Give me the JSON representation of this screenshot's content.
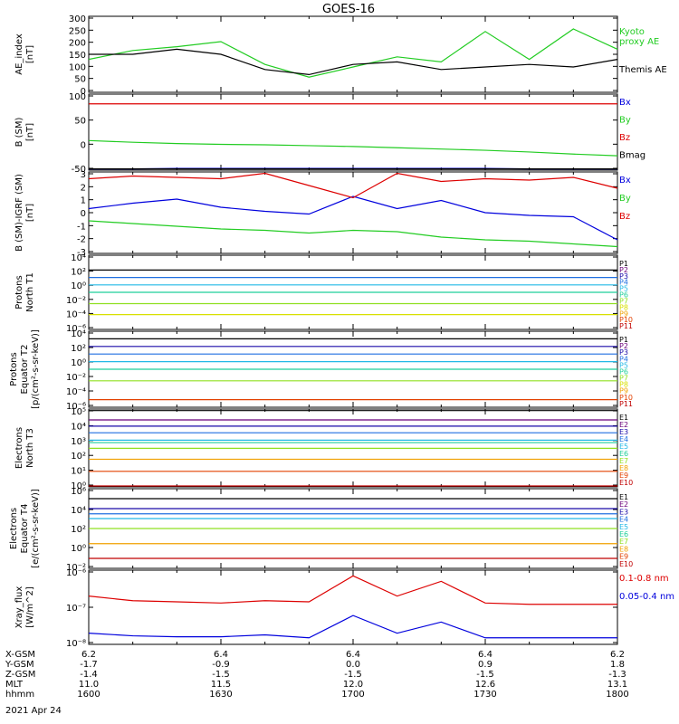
{
  "title": "GOES-16",
  "date": "2021 Apr 24",
  "colors": {
    "black": "#000000",
    "blue": "#0000dd",
    "green": "#22cc22",
    "red": "#dd0000",
    "P1": "#000000",
    "P2": "#6a007a",
    "P3": "#1a0aa8",
    "P4": "#1f6fe0",
    "P5": "#22b8e6",
    "P6": "#1fcf9a",
    "P7": "#8fe020",
    "P8": "#d8e000",
    "P9": "#f0a000",
    "P10": "#e34000",
    "P11": "#c00000"
  },
  "panels": [
    {
      "id": "ae",
      "ylabel": [
        "AE_index",
        "[nT]"
      ],
      "ticks": [
        "300",
        "250",
        "200",
        "150",
        "100",
        "50",
        "0"
      ],
      "legend": [
        {
          "text": "Kyoto",
          "color": "green"
        },
        {
          "text": "proxy AE",
          "color": "green"
        },
        {
          "text": "Themis AE",
          "color": "black"
        }
      ]
    },
    {
      "id": "b_sm",
      "ylabel": [
        "B (SM)",
        "[nT]"
      ],
      "ticks": [
        "100",
        "50",
        "0",
        "-50"
      ],
      "legend": [
        {
          "text": "Bx",
          "color": "blue"
        },
        {
          "text": "By",
          "color": "green"
        },
        {
          "text": "Bz",
          "color": "red"
        },
        {
          "text": "Bmag",
          "color": "black"
        }
      ]
    },
    {
      "id": "b_igrf",
      "ylabel": [
        "B (SM)-IGRF (SM)",
        "[nT]"
      ],
      "ticks": [
        "3",
        "2",
        "1",
        "0",
        "-1",
        "-2",
        "-3"
      ],
      "legend": [
        {
          "text": "Bx",
          "color": "blue"
        },
        {
          "text": "By",
          "color": "green"
        },
        {
          "text": "Bz",
          "color": "red"
        }
      ]
    },
    {
      "id": "protons_t1",
      "ylabel": [
        "Protons",
        "North T1"
      ],
      "ticks": [
        "10⁴",
        "10²",
        "10⁰",
        "10⁻²",
        "10⁻⁴",
        "10⁻⁶"
      ],
      "legend": [
        {
          "text": "P1",
          "color": "P1"
        },
        {
          "text": "P2",
          "color": "P2"
        },
        {
          "text": "P3",
          "color": "P3"
        },
        {
          "text": "P4",
          "color": "P4"
        },
        {
          "text": "P5",
          "color": "P5"
        },
        {
          "text": "P6",
          "color": "P6"
        },
        {
          "text": "P7",
          "color": "P7"
        },
        {
          "text": "P8",
          "color": "P8"
        },
        {
          "text": "P9",
          "color": "P9"
        },
        {
          "text": "P10",
          "color": "P10"
        },
        {
          "text": "P11",
          "color": "P11"
        }
      ]
    },
    {
      "id": "protons_t2",
      "ylabel": [
        "Protons",
        "Equator T2",
        "[p/(cm²-s-sr-keV)]"
      ],
      "ticks": [
        "10⁴",
        "10²",
        "10⁰",
        "10⁻²",
        "10⁻⁴",
        "10⁻⁶"
      ],
      "legend": [
        {
          "text": "P1",
          "color": "P1"
        },
        {
          "text": "P2",
          "color": "P2"
        },
        {
          "text": "P3",
          "color": "P3"
        },
        {
          "text": "P4",
          "color": "P4"
        },
        {
          "text": "P5",
          "color": "P5"
        },
        {
          "text": "P6",
          "color": "P6"
        },
        {
          "text": "P7",
          "color": "P7"
        },
        {
          "text": "P8",
          "color": "P8"
        },
        {
          "text": "P9",
          "color": "P9"
        },
        {
          "text": "P10",
          "color": "P10"
        },
        {
          "text": "P11",
          "color": "P11"
        }
      ]
    },
    {
      "id": "electrons_t3",
      "ylabel": [
        "Electrons",
        "North T3"
      ],
      "ticks": [
        "10⁵",
        "10⁴",
        "10³",
        "10²",
        "10¹",
        "10⁰"
      ],
      "legend": [
        {
          "text": "E1",
          "color": "P1"
        },
        {
          "text": "E2",
          "color": "P2"
        },
        {
          "text": "E3",
          "color": "P3"
        },
        {
          "text": "E4",
          "color": "P4"
        },
        {
          "text": "E5",
          "color": "P5"
        },
        {
          "text": "E6",
          "color": "P6"
        },
        {
          "text": "E7",
          "color": "P7"
        },
        {
          "text": "E8",
          "color": "P9"
        },
        {
          "text": "E9",
          "color": "P10"
        },
        {
          "text": "E10",
          "color": "P11"
        }
      ]
    },
    {
      "id": "electrons_t4",
      "ylabel": [
        "Electrons",
        "Equator T4",
        "[e/(cm²-s-sr-keV)]"
      ],
      "ticks": [
        "10⁶",
        "10⁴",
        "10²",
        "10⁰",
        "10⁻²"
      ],
      "legend": [
        {
          "text": "E1",
          "color": "P1"
        },
        {
          "text": "E2",
          "color": "P2"
        },
        {
          "text": "E3",
          "color": "P3"
        },
        {
          "text": "E4",
          "color": "P4"
        },
        {
          "text": "E5",
          "color": "P5"
        },
        {
          "text": "E6",
          "color": "P6"
        },
        {
          "text": "E7",
          "color": "P7"
        },
        {
          "text": "E8",
          "color": "P9"
        },
        {
          "text": "E9",
          "color": "P10"
        },
        {
          "text": "E10",
          "color": "P11"
        }
      ]
    },
    {
      "id": "xray",
      "ylabel": [
        "Xray_flux",
        "[W/m^2]"
      ],
      "ticks": [
        "10⁻⁶",
        "10⁻⁷",
        "10⁻⁸"
      ],
      "legend": [
        {
          "text": "0.1-0.8 nm",
          "color": "red"
        },
        {
          "text": "0.05-0.4 nm",
          "color": "blue"
        }
      ]
    }
  ],
  "footer": {
    "row_labels": [
      "X-GSM",
      "Y-GSM",
      "Z-GSM",
      "MLT",
      "hhmm"
    ],
    "columns": [
      [
        "6.2",
        "-1.7",
        "-1.4",
        "11.0",
        "1600"
      ],
      [
        "6.4",
        "-0.9",
        "-1.5",
        "11.5",
        "1630"
      ],
      [
        "6.4",
        "0.0",
        "-1.5",
        "12.0",
        "1700"
      ],
      [
        "6.4",
        "0.9",
        "-1.5",
        "12.6",
        "1730"
      ],
      [
        "6.2",
        "1.8",
        "-1.3",
        "13.1",
        "1800"
      ]
    ]
  },
  "chart_data": [
    {
      "type": "line",
      "x_label": "hhmm",
      "x_range": [
        "1600",
        "1800"
      ],
      "x": [
        1600,
        1610,
        1620,
        1630,
        1640,
        1650,
        1700,
        1710,
        1720,
        1730,
        1740,
        1750,
        1800
      ],
      "ylim": [
        0,
        300
      ],
      "series": [
        {
          "name": "Kyoto proxy AE",
          "color": "green",
          "values": [
            130,
            165,
            180,
            200,
            110,
            60,
            100,
            140,
            120,
            240,
            130,
            250,
            170
          ]
        },
        {
          "name": "Themis AE",
          "color": "black",
          "values": [
            150,
            150,
            170,
            150,
            90,
            70,
            110,
            120,
            90,
            100,
            110,
            100,
            130
          ]
        }
      ]
    },
    {
      "type": "line",
      "ylim": [
        -60,
        120
      ],
      "series": [
        {
          "name": "Bx",
          "color": "blue",
          "values": [
            -57,
            -57,
            -56,
            -56,
            -56,
            -56,
            -56,
            -56,
            -56,
            -56,
            -57,
            -57,
            -57
          ]
        },
        {
          "name": "By",
          "color": "green",
          "values": [
            10,
            6,
            3,
            1,
            0,
            -2,
            -4,
            -7,
            -10,
            -13,
            -17,
            -22,
            -26
          ]
        },
        {
          "name": "Bz",
          "color": "red",
          "values": [
            97,
            97,
            97,
            97,
            97,
            97,
            97,
            97,
            97,
            97,
            97,
            97,
            97
          ]
        },
        {
          "name": "Bmag",
          "color": "black",
          "values": [
            -57,
            -57,
            -57,
            -57,
            -57,
            -57,
            -57,
            -57,
            -57,
            -57,
            -57,
            -57,
            -57
          ]
        }
      ]
    },
    {
      "type": "line",
      "ylim": [
        -3,
        3
      ],
      "series": [
        {
          "name": "Bx",
          "color": "blue",
          "values": [
            0.3,
            0.7,
            1.0,
            0.4,
            0.1,
            -0.1,
            1.2,
            0.3,
            0.9,
            0.0,
            -0.2,
            -0.3,
            -2.0
          ]
        },
        {
          "name": "By",
          "color": "green",
          "values": [
            -0.6,
            -0.8,
            -1.0,
            -1.2,
            -1.3,
            -1.5,
            -1.3,
            -1.4,
            -1.8,
            -2.0,
            -2.1,
            -2.3,
            -2.5
          ]
        },
        {
          "name": "Bz",
          "color": "red",
          "values": [
            2.5,
            2.7,
            2.6,
            2.5,
            2.9,
            2.0,
            1.1,
            2.9,
            2.3,
            2.5,
            2.4,
            2.6,
            1.8
          ]
        }
      ]
    },
    {
      "type": "line",
      "scale": "log",
      "ylim": [
        "1e-6",
        "1e4"
      ],
      "series": [
        {
          "name": "P1",
          "color": "P1",
          "values": [
            "100",
            "100",
            "100"
          ]
        },
        {
          "name": "P4",
          "color": "P4",
          "values": [
            "10",
            "10",
            "10"
          ]
        },
        {
          "name": "P5",
          "color": "P5",
          "values": [
            "1",
            "1",
            "1"
          ]
        },
        {
          "name": "P6",
          "color": "P6",
          "values": [
            "0.1",
            "0.1",
            "0.1"
          ]
        },
        {
          "name": "P7",
          "color": "P7",
          "values": [
            "0.003",
            "0.003",
            "0.003"
          ]
        },
        {
          "name": "P8",
          "color": "P8",
          "values": [
            "0.0001",
            "0.0001",
            "0.0001"
          ]
        }
      ]
    },
    {
      "type": "line",
      "scale": "log",
      "ylim": [
        "1e-6",
        "1e4"
      ],
      "series": [
        {
          "name": "P1",
          "color": "P1",
          "values": [
            "1000",
            "1000",
            "1000"
          ]
        },
        {
          "name": "P3",
          "color": "P3",
          "values": [
            "100",
            "100",
            "100"
          ]
        },
        {
          "name": "P4",
          "color": "P4",
          "values": [
            "10",
            "10",
            "10"
          ]
        },
        {
          "name": "P5",
          "color": "P5",
          "values": [
            "1",
            "1",
            "1"
          ]
        },
        {
          "name": "P6",
          "color": "P6",
          "values": [
            "0.1",
            "0.1",
            "0.1"
          ]
        },
        {
          "name": "P7",
          "color": "P7",
          "values": [
            "0.003",
            "0.003",
            "0.003"
          ]
        },
        {
          "name": "P10",
          "color": "P10",
          "values": [
            "0.00001",
            "0.00001"
          ]
        }
      ]
    },
    {
      "type": "line",
      "scale": "log",
      "ylim": [
        "1",
        "1e5"
      ],
      "series": [
        {
          "name": "E1",
          "color": "P1",
          "values": [
            "80000",
            "80000",
            "80000"
          ]
        },
        {
          "name": "E2",
          "color": "P2",
          "values": [
            "20000",
            "20000",
            "20000"
          ]
        },
        {
          "name": "E3",
          "color": "P3",
          "values": [
            "8000",
            "8000",
            "8000"
          ]
        },
        {
          "name": "E4",
          "color": "P4",
          "values": [
            "3000",
            "3000",
            "3000"
          ]
        },
        {
          "name": "E5",
          "color": "P5",
          "values": [
            "1000",
            "1000",
            "1000"
          ]
        },
        {
          "name": "E6",
          "color": "P6",
          "values": [
            "700",
            "700",
            "700"
          ]
        },
        {
          "name": "E7",
          "color": "P7",
          "values": [
            "300",
            "300",
            "300"
          ]
        },
        {
          "name": "E8",
          "color": "P9",
          "values": [
            "60",
            "60",
            "60"
          ]
        },
        {
          "name": "E9",
          "color": "P10",
          "values": [
            "10",
            "10",
            "10"
          ]
        },
        {
          "name": "E10",
          "color": "P11",
          "values": [
            "1",
            "1",
            "1"
          ]
        }
      ]
    },
    {
      "type": "line",
      "scale": "log",
      "ylim": [
        "1e-2",
        "1e6"
      ],
      "series": [
        {
          "name": "E1",
          "color": "P1",
          "values": [
            "100000",
            "100000",
            "100000"
          ]
        },
        {
          "name": "E3",
          "color": "P3",
          "values": [
            "10000",
            "10000",
            "10000"
          ]
        },
        {
          "name": "E4",
          "color": "P4",
          "values": [
            "3000",
            "3000",
            "3000"
          ]
        },
        {
          "name": "E5",
          "color": "P5",
          "values": [
            "1000",
            "1000",
            "1000"
          ]
        },
        {
          "name": "E7",
          "color": "P7",
          "values": [
            "100",
            "100",
            "100"
          ]
        },
        {
          "name": "E8",
          "color": "P9",
          "values": [
            "3",
            "3",
            "3"
          ]
        },
        {
          "name": "E10",
          "color": "P11",
          "values": [
            "0.1",
            "0.1",
            "0.1"
          ]
        }
      ]
    },
    {
      "type": "line",
      "scale": "log",
      "ylim": [
        "1e-8",
        "1e-6"
      ],
      "series": [
        {
          "name": "0.1-0.8 nm",
          "color": "red",
          "values": [
            "2e-7",
            "1.5e-7",
            "1.4e-7",
            "1.3e-7",
            "1.5e-7",
            "1.4e-7",
            "7e-7",
            "2e-7",
            "5e-7",
            "1.3e-7",
            "1.2e-7",
            "1.2e-7",
            "1.2e-7"
          ]
        },
        {
          "name": "0.05-0.4 nm",
          "color": "blue",
          "values": [
            "2e-8",
            "1.7e-8",
            "1.6e-8",
            "1.6e-8",
            "1.8e-8",
            "1.5e-8",
            "6e-8",
            "2e-8",
            "4e-8",
            "1.5e-8",
            "1.5e-8",
            "1.5e-8",
            "1.5e-8"
          ]
        }
      ]
    }
  ]
}
